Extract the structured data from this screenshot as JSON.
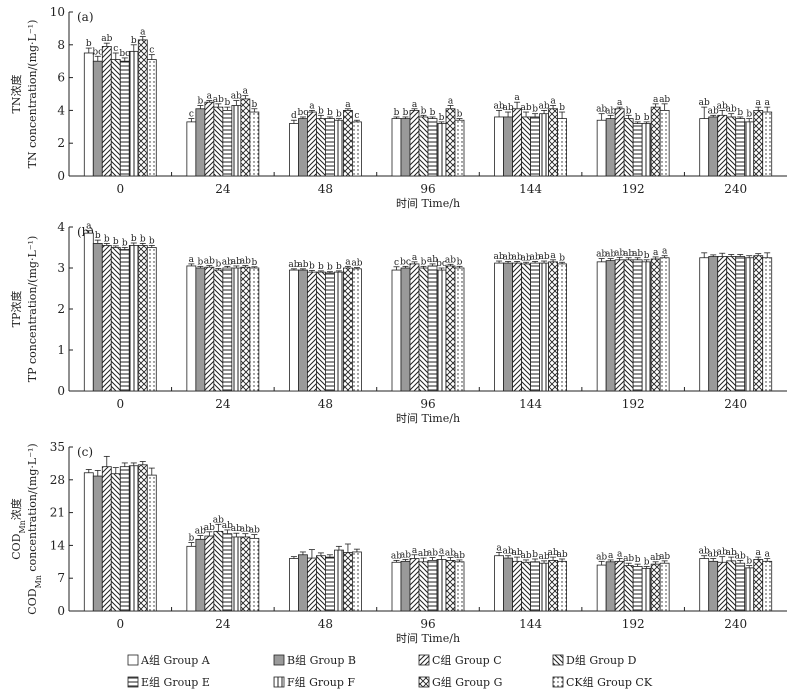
{
  "legend": [
    {
      "key": "A",
      "label": "A组 Group A",
      "pattern": "none"
    },
    {
      "key": "B",
      "label": "B组 Group B",
      "pattern": "gray"
    },
    {
      "key": "C",
      "label": "C组 Group C",
      "pattern": "diag-right"
    },
    {
      "key": "D",
      "label": "D组 Group D",
      "pattern": "diag-left"
    },
    {
      "key": "E",
      "label": "E组 Group E",
      "pattern": "horizontal"
    },
    {
      "key": "F",
      "label": "F组 Group F",
      "pattern": "vertical"
    },
    {
      "key": "G",
      "label": "G组 Group G",
      "pattern": "cross"
    },
    {
      "key": "CK",
      "label": "CK组 Group CK",
      "pattern": "dots"
    }
  ],
  "colors": {
    "bar_edge": "#222222",
    "gray_fill": "#9a9a9a",
    "background": "#ffffff"
  },
  "chart_data": [
    {
      "type": "bar",
      "panel_label": "(a)",
      "ylabel_cn": "TN浓度",
      "ylabel_en": "TN concentration/(mg·L⁻¹)",
      "xlabel": "时间 Time/h",
      "categories": [
        "0",
        "24",
        "48",
        "96",
        "144",
        "192",
        "240"
      ],
      "ylim": [
        0,
        10
      ],
      "yticks": [
        0,
        2,
        4,
        6,
        8,
        10
      ],
      "series": [
        {
          "name": "A组 Group A",
          "values": [
            7.5,
            3.3,
            3.2,
            3.5,
            3.6,
            3.4,
            3.5
          ],
          "errors": [
            0.3,
            0.2,
            0.2,
            0.1,
            0.4,
            0.4,
            0.7
          ],
          "labels": [
            "b",
            "c",
            "d",
            "b",
            "ab",
            "ab",
            "ab"
          ]
        },
        {
          "name": "B组 Group B",
          "values": [
            7.0,
            4.1,
            3.5,
            3.5,
            3.6,
            3.5,
            3.6
          ],
          "errors": [
            0.3,
            0.2,
            0.1,
            0.1,
            0.3,
            0.2,
            0.1
          ],
          "labels": [
            "bc",
            "b",
            "bc",
            "b",
            "ab",
            "ab",
            "ab"
          ]
        },
        {
          "name": "C组 Group C",
          "values": [
            7.9,
            4.5,
            3.9,
            4.0,
            4.1,
            4.1,
            3.7
          ],
          "errors": [
            0.2,
            0.1,
            0.1,
            0.1,
            0.4,
            0.1,
            0.3
          ],
          "labels": [
            "ab",
            "a",
            "a",
            "a",
            "a",
            "a",
            "ab"
          ]
        },
        {
          "name": "D组 Group D",
          "values": [
            7.1,
            4.2,
            3.5,
            3.6,
            3.6,
            3.5,
            3.6
          ],
          "errors": [
            0.4,
            0.2,
            0.2,
            0.1,
            0.3,
            0.2,
            0.2
          ],
          "labels": [
            "c",
            "ab",
            "b",
            "b",
            "ab",
            "b",
            "ab"
          ]
        },
        {
          "name": "E组 Group E",
          "values": [
            7.0,
            4.0,
            3.5,
            3.5,
            3.6,
            3.2,
            3.5
          ],
          "errors": [
            0.2,
            0.2,
            0.1,
            0.1,
            0.2,
            0.1,
            0.1
          ],
          "labels": [
            "bc",
            "b",
            "b",
            "b",
            "b",
            "b",
            "b"
          ]
        },
        {
          "name": "F组 Group F",
          "values": [
            7.6,
            4.3,
            3.4,
            3.2,
            3.8,
            3.2,
            3.3
          ],
          "errors": [
            0.4,
            0.3,
            0.1,
            0.1,
            0.2,
            0.1,
            0.2
          ],
          "labels": [
            "b",
            "ab",
            "b",
            "b",
            "ab",
            "b",
            "b"
          ]
        },
        {
          "name": "G组 Group G",
          "values": [
            8.3,
            4.7,
            4.0,
            4.1,
            4.1,
            4.2,
            4.0
          ],
          "errors": [
            0.2,
            0.2,
            0.1,
            0.2,
            0.2,
            0.2,
            0.2
          ],
          "labels": [
            "a",
            "a",
            "a",
            "a",
            "a",
            "a",
            "a"
          ]
        },
        {
          "name": "CK组 Group CK",
          "values": [
            7.1,
            3.9,
            3.3,
            3.4,
            3.5,
            4.0,
            3.9
          ],
          "errors": [
            0.3,
            0.2,
            0.1,
            0.1,
            0.4,
            0.4,
            0.3
          ],
          "labels": [
            "c",
            "b",
            "c",
            "b",
            "b",
            "ab",
            "a"
          ]
        }
      ]
    },
    {
      "type": "bar",
      "panel_label": "(b)",
      "ylabel_cn": "TP浓度",
      "ylabel_en": "TP concentration/(mg·L⁻¹)",
      "xlabel": "时间 Time/h",
      "categories": [
        "0",
        "24",
        "48",
        "96",
        "144",
        "192",
        "240"
      ],
      "ylim": [
        0,
        4
      ],
      "yticks": [
        0,
        1,
        2,
        3,
        4
      ],
      "series": [
        {
          "name": "A组 Group A",
          "values": [
            3.85,
            3.05,
            2.95,
            2.95,
            3.12,
            3.15,
            3.25
          ],
          "errors": [
            0.06,
            0.05,
            0.03,
            0.08,
            0.05,
            0.08,
            0.12
          ],
          "labels": [
            "a",
            "a",
            "ab",
            "c",
            "ab",
            "ab",
            ""
          ]
        },
        {
          "name": "B组 Group B",
          "values": [
            3.6,
            3.0,
            2.95,
            3.0,
            3.12,
            3.18,
            3.28
          ],
          "errors": [
            0.08,
            0.04,
            0.03,
            0.04,
            0.04,
            0.05,
            0.04
          ],
          "labels": [
            "b",
            "b",
            "ab",
            "bc",
            "ab",
            "ab",
            ""
          ]
        },
        {
          "name": "C组 Group C",
          "values": [
            3.55,
            3.02,
            2.9,
            3.1,
            3.12,
            3.2,
            3.28
          ],
          "errors": [
            0.05,
            0.04,
            0.04,
            0.05,
            0.04,
            0.06,
            0.08
          ],
          "labels": [
            "b",
            "ab",
            "b",
            "a",
            "ab",
            "ab",
            ""
          ]
        },
        {
          "name": "D组 Group D",
          "values": [
            3.5,
            2.95,
            2.9,
            3.0,
            3.1,
            3.2,
            3.28
          ],
          "errors": [
            0.04,
            0.04,
            0.03,
            0.04,
            0.04,
            0.05,
            0.05
          ],
          "labels": [
            "b",
            "b",
            "b",
            "b",
            "ab",
            "ab",
            ""
          ]
        },
        {
          "name": "E组 Group E",
          "values": [
            3.45,
            3.0,
            2.88,
            3.05,
            3.12,
            3.2,
            3.28
          ],
          "errors": [
            0.05,
            0.04,
            0.03,
            0.05,
            0.04,
            0.05,
            0.05
          ],
          "labels": [
            "b",
            "ab",
            "b",
            "ab",
            "ab",
            "ab",
            ""
          ]
        },
        {
          "name": "F组 Group F",
          "values": [
            3.55,
            3.0,
            2.9,
            2.95,
            3.12,
            3.15,
            3.25
          ],
          "errors": [
            0.06,
            0.05,
            0.03,
            0.05,
            0.05,
            0.05,
            0.05
          ],
          "labels": [
            "b",
            "ab",
            "b",
            "bc",
            "ab",
            "b",
            ""
          ]
        },
        {
          "name": "G组 Group G",
          "values": [
            3.55,
            3.02,
            3.0,
            3.05,
            3.15,
            3.22,
            3.3
          ],
          "errors": [
            0.05,
            0.04,
            0.04,
            0.04,
            0.05,
            0.05,
            0.05
          ],
          "labels": [
            "b",
            "ab",
            "a",
            "ab",
            "a",
            "a",
            ""
          ]
        },
        {
          "name": "CK组 Group CK",
          "values": [
            3.5,
            3.0,
            2.98,
            3.0,
            3.1,
            3.25,
            3.25
          ],
          "errors": [
            0.05,
            0.03,
            0.03,
            0.04,
            0.04,
            0.05,
            0.12
          ],
          "labels": [
            "b",
            "b",
            "ab",
            "b",
            "b",
            "a",
            ""
          ]
        }
      ]
    },
    {
      "type": "bar",
      "panel_label": "(c)",
      "ylabel_cn": "COD",
      "ylabel_cn_sub": "Mn",
      "ylabel_cn_tail": "浓度",
      "ylabel_en": "COD",
      "ylabel_en_sub": "Mn",
      "ylabel_en_tail": " concentration/(mg·L⁻¹)",
      "xlabel": "时间 Time/h",
      "categories": [
        "0",
        "24",
        "48",
        "96",
        "144",
        "192",
        "240"
      ],
      "ylim": [
        0,
        35
      ],
      "yticks": [
        0,
        7,
        14,
        21,
        28,
        35
      ],
      "series": [
        {
          "name": "A组 Group A",
          "values": [
            29.5,
            13.8,
            11.2,
            10.4,
            11.8,
            9.8,
            11.2
          ],
          "errors": [
            0.7,
            0.8,
            0.4,
            0.4,
            0.7,
            0.8,
            0.6
          ],
          "labels": [
            "",
            "b",
            "",
            "ab",
            "a",
            "ab",
            "ab"
          ]
        },
        {
          "name": "B组 Group B",
          "values": [
            28.8,
            15.3,
            12.0,
            10.6,
            11.3,
            10.5,
            10.6
          ],
          "errors": [
            1.2,
            0.8,
            0.6,
            0.4,
            0.5,
            0.4,
            0.6
          ],
          "labels": [
            "",
            "ab",
            "",
            "ab",
            "ab",
            "a",
            "ab"
          ]
        },
        {
          "name": "C组 Group C",
          "values": [
            30.8,
            16.0,
            11.3,
            11.2,
            10.6,
            10.6,
            10.4
          ],
          "errors": [
            2.2,
            0.9,
            1.8,
            0.8,
            0.9,
            0.6,
            1.2
          ],
          "labels": [
            "",
            "ab",
            "",
            "a",
            "ab",
            "a",
            "ab"
          ]
        },
        {
          "name": "D组 Group D",
          "values": [
            29.3,
            17.0,
            11.8,
            10.5,
            10.4,
            9.7,
            10.7
          ],
          "errors": [
            1.3,
            1.5,
            0.6,
            0.8,
            0.5,
            0.5,
            0.8
          ],
          "labels": [
            "",
            "ab",
            "",
            "ab",
            "ab",
            "ab",
            "ab"
          ]
        },
        {
          "name": "E组 Group E",
          "values": [
            30.8,
            16.5,
            11.5,
            10.8,
            10.5,
            9.5,
            10.2
          ],
          "errors": [
            0.8,
            0.8,
            0.5,
            0.6,
            0.6,
            0.5,
            0.6
          ],
          "labels": [
            "",
            "ab",
            "",
            "ab",
            "b",
            "b",
            "ab"
          ]
        },
        {
          "name": "F组 Group F",
          "values": [
            31.0,
            15.8,
            13.0,
            11.0,
            10.2,
            9.1,
            9.2
          ],
          "errors": [
            0.6,
            0.8,
            0.8,
            0.8,
            0.5,
            0.4,
            0.5
          ],
          "labels": [
            "",
            "ab",
            "",
            "a",
            "ab",
            "b",
            "b"
          ]
        },
        {
          "name": "G组 Group G",
          "values": [
            31.2,
            15.8,
            12.5,
            10.8,
            10.8,
            10.0,
            11.0
          ],
          "errors": [
            0.7,
            0.7,
            1.8,
            0.6,
            0.7,
            0.5,
            0.5
          ],
          "labels": [
            "",
            "ab",
            "",
            "ab",
            "ab",
            "ab",
            "a"
          ]
        },
        {
          "name": "CK组 Group CK",
          "values": [
            29.0,
            15.5,
            12.6,
            10.5,
            10.6,
            10.2,
            10.6
          ],
          "errors": [
            1.5,
            0.8,
            0.6,
            0.4,
            0.5,
            0.5,
            0.6
          ],
          "labels": [
            "",
            "ab",
            "",
            "ab",
            "ab",
            "ab",
            "a"
          ]
        }
      ]
    }
  ]
}
